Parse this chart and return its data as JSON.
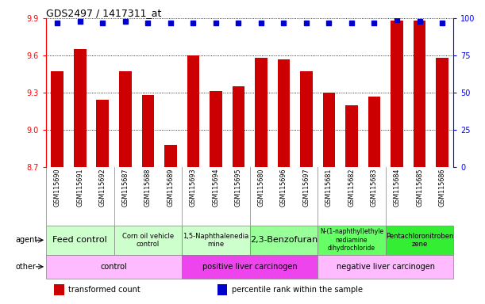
{
  "title": "GDS2497 / 1417311_at",
  "samples": [
    "GSM115690",
    "GSM115691",
    "GSM115692",
    "GSM115687",
    "GSM115688",
    "GSM115689",
    "GSM115693",
    "GSM115694",
    "GSM115695",
    "GSM115680",
    "GSM115696",
    "GSM115697",
    "GSM115681",
    "GSM115682",
    "GSM115683",
    "GSM115684",
    "GSM115685",
    "GSM115686"
  ],
  "bar_values": [
    9.47,
    9.65,
    9.24,
    9.47,
    9.28,
    8.88,
    9.6,
    9.31,
    9.35,
    9.58,
    9.57,
    9.47,
    9.3,
    9.2,
    9.27,
    9.88,
    9.88,
    9.58
  ],
  "percentile_values": [
    97,
    98,
    97,
    98,
    97,
    97,
    97,
    97,
    97,
    97,
    97,
    97,
    97,
    97,
    97,
    99,
    98,
    97
  ],
  "ylim_left": [
    8.7,
    9.9
  ],
  "ylim_right": [
    0,
    100
  ],
  "yticks_left": [
    8.7,
    9.0,
    9.3,
    9.6,
    9.9
  ],
  "yticks_right": [
    0,
    25,
    50,
    75,
    100
  ],
  "bar_color": "#cc0000",
  "percentile_color": "#0000cc",
  "agent_groups": [
    {
      "label": "Feed control",
      "start": 0,
      "end": 3,
      "color": "#ccffcc",
      "fontsize": 8
    },
    {
      "label": "Corn oil vehicle\ncontrol",
      "start": 3,
      "end": 6,
      "color": "#ccffcc",
      "fontsize": 6
    },
    {
      "label": "1,5-Naphthalenedia\nmine",
      "start": 6,
      "end": 9,
      "color": "#ccffcc",
      "fontsize": 6
    },
    {
      "label": "2,3-Benzofuran",
      "start": 9,
      "end": 12,
      "color": "#99ff99",
      "fontsize": 8
    },
    {
      "label": "N-(1-naphthyl)ethyle\nnediamine\ndihydrochloride",
      "start": 12,
      "end": 15,
      "color": "#66ff66",
      "fontsize": 5.5
    },
    {
      "label": "Pentachloronitroben\nzene",
      "start": 15,
      "end": 18,
      "color": "#33ee33",
      "fontsize": 6
    }
  ],
  "other_groups": [
    {
      "label": "control",
      "start": 0,
      "end": 6,
      "color": "#ffbbff"
    },
    {
      "label": "positive liver carcinogen",
      "start": 6,
      "end": 12,
      "color": "#ee44ee"
    },
    {
      "label": "negative liver carcinogen",
      "start": 12,
      "end": 18,
      "color": "#ffbbff"
    }
  ],
  "legend_items": [
    {
      "label": "transformed count",
      "color": "#cc0000"
    },
    {
      "label": "percentile rank within the sample",
      "color": "#0000cc"
    }
  ],
  "bg_color": "#ffffff",
  "tick_area_color": "#e8e8e8"
}
